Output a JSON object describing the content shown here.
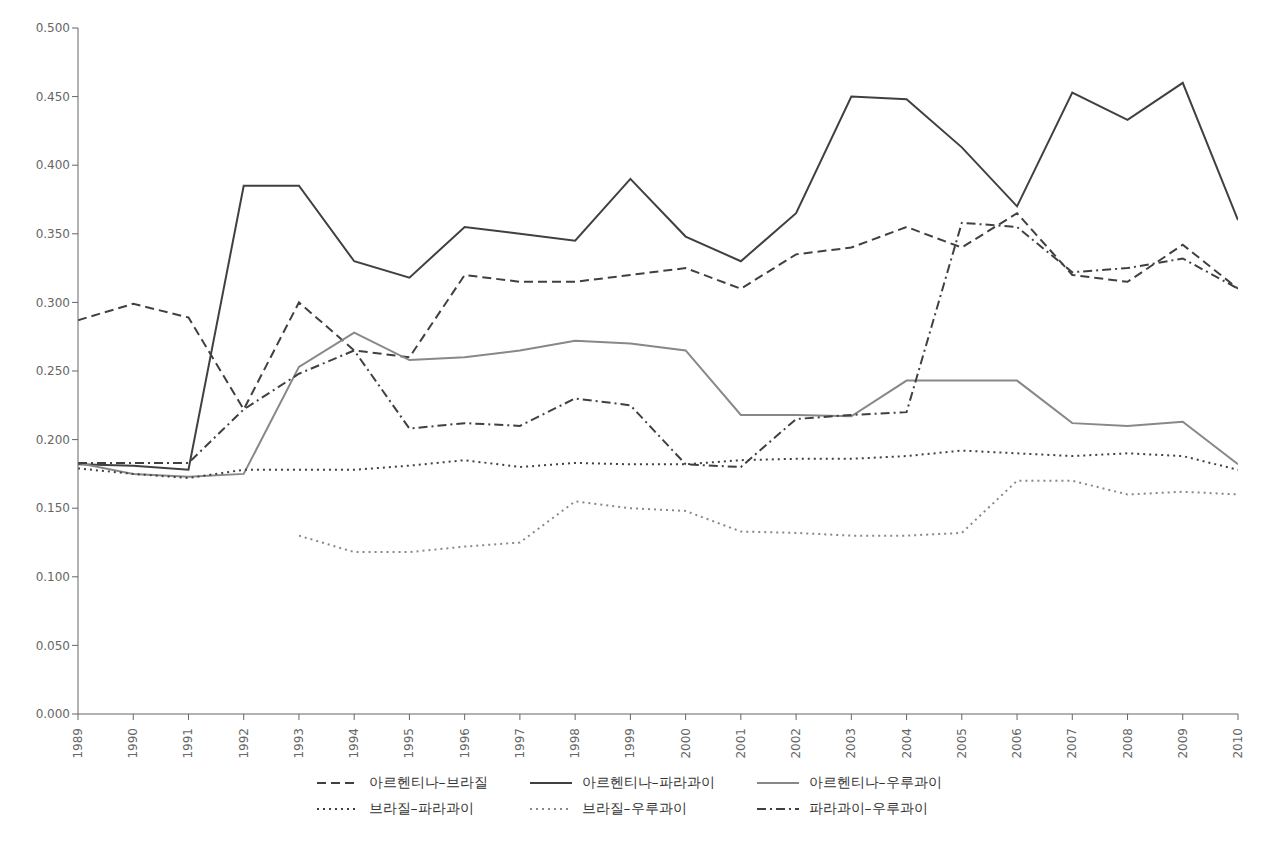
{
  "chart_data": {
    "type": "line",
    "x": [
      1989,
      1990,
      1991,
      1992,
      1993,
      1994,
      1995,
      1996,
      1997,
      1998,
      1999,
      2000,
      2001,
      2002,
      2003,
      2004,
      2005,
      2006,
      2007,
      2008,
      2009,
      2010
    ],
    "series": [
      {
        "name": "아르헨티나–브라질",
        "color": "#404040",
        "line_style": "dashed",
        "values": [
          0.287,
          0.299,
          0.289,
          0.222,
          0.3,
          0.265,
          0.26,
          0.32,
          0.315,
          0.315,
          0.32,
          0.325,
          0.31,
          0.335,
          0.34,
          0.355,
          0.34,
          0.365,
          0.32,
          0.315,
          0.342,
          0.31
        ]
      },
      {
        "name": "아르헨티나–파라과이",
        "color": "#404040",
        "line_style": "solid",
        "values": [
          0.182,
          0.181,
          0.178,
          0.385,
          0.385,
          0.33,
          0.318,
          0.355,
          0.35,
          0.345,
          0.39,
          0.348,
          0.33,
          0.365,
          0.45,
          0.448,
          0.413,
          0.37,
          0.453,
          0.433,
          0.46,
          0.36
        ]
      },
      {
        "name": "아르헨티나–우루과이",
        "color": "#888888",
        "line_style": "solid",
        "values": [
          0.183,
          0.175,
          0.173,
          0.175,
          0.253,
          0.278,
          0.258,
          0.26,
          0.265,
          0.272,
          0.27,
          0.265,
          0.218,
          0.218,
          0.217,
          0.243,
          0.243,
          0.243,
          0.212,
          0.21,
          0.213,
          0.182
        ]
      },
      {
        "name": "브라질–파라과이",
        "color": "#404040",
        "line_style": "dotted",
        "values": [
          0.179,
          0.175,
          0.172,
          0.178,
          0.178,
          0.178,
          0.181,
          0.185,
          0.18,
          0.183,
          0.182,
          0.182,
          0.185,
          0.186,
          0.186,
          0.188,
          0.192,
          0.19,
          0.188,
          0.19,
          0.188,
          0.178
        ]
      },
      {
        "name": "브라질–우루과이",
        "color": "#888888",
        "line_style": "dotted",
        "values": [
          null,
          null,
          null,
          null,
          0.13,
          0.118,
          0.118,
          0.122,
          0.125,
          0.155,
          0.15,
          0.148,
          0.133,
          0.132,
          0.13,
          0.13,
          0.132,
          0.17,
          0.17,
          0.16,
          0.162,
          0.16
        ]
      },
      {
        "name": "파라과이–우루과이",
        "color": "#404040",
        "line_style": "dashdot",
        "values": [
          0.183,
          0.183,
          0.183,
          0.222,
          0.248,
          0.265,
          0.208,
          0.212,
          0.21,
          0.23,
          0.225,
          0.182,
          0.18,
          0.215,
          0.218,
          0.22,
          0.358,
          0.355,
          0.322,
          0.325,
          0.332,
          0.31
        ]
      }
    ],
    "xlim": [
      1989,
      2010
    ],
    "xticks": [
      1989,
      1990,
      1991,
      1992,
      1993,
      1994,
      1995,
      1996,
      1997,
      1998,
      1999,
      2000,
      2001,
      2002,
      2003,
      2004,
      2005,
      2006,
      2007,
      2008,
      2009,
      2010
    ],
    "ylim": [
      0.0,
      0.5
    ],
    "yticks": [
      {
        "value": 0.0,
        "label": "0.000"
      },
      {
        "value": 0.05,
        "label": "0.050"
      },
      {
        "value": 0.1,
        "label": "0.100"
      },
      {
        "value": 0.15,
        "label": "0.150"
      },
      {
        "value": 0.2,
        "label": "0.200"
      },
      {
        "value": 0.25,
        "label": "0.250"
      },
      {
        "value": 0.3,
        "label": "0.300"
      },
      {
        "value": 0.35,
        "label": "0.350"
      },
      {
        "value": 0.4,
        "label": "0.400"
      },
      {
        "value": 0.45,
        "label": "0.450"
      },
      {
        "value": 0.5,
        "label": "0.500"
      }
    ],
    "grid": false,
    "legend": "bottom"
  }
}
